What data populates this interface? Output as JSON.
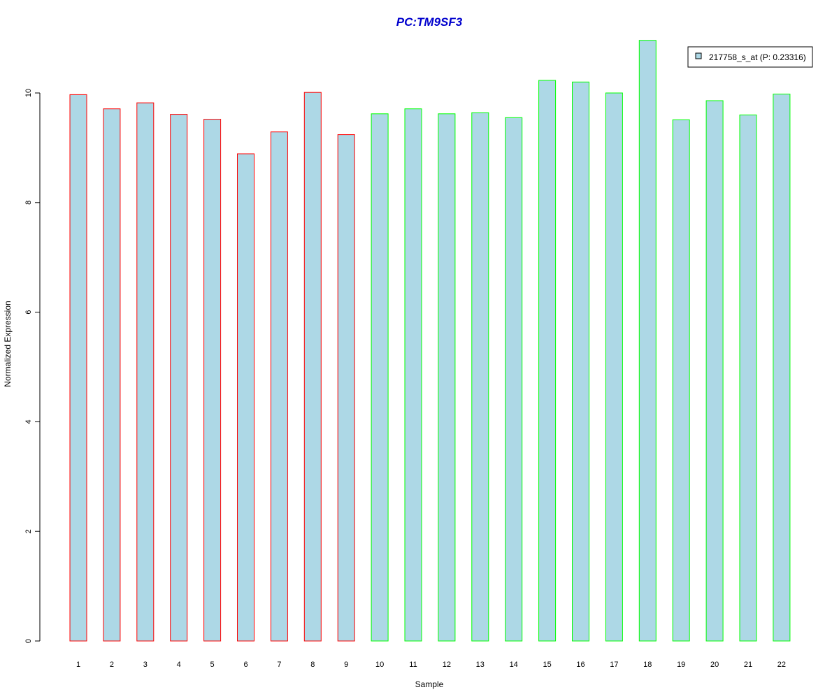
{
  "chart_data": {
    "type": "bar",
    "title": "PC:TM9SF3",
    "title_color": "#0000CD",
    "xlabel": "Sample",
    "ylabel": "Normalized Expression",
    "ylim": [
      0,
      11
    ],
    "yticks": [
      0,
      2,
      4,
      6,
      8,
      10
    ],
    "grid": false,
    "legend_position": "top-right",
    "fill_color": "#ADD8E6",
    "group_colors": {
      "group_a": "#FF0000",
      "group_b": "#00FF00"
    },
    "categories": [
      "1",
      "2",
      "3",
      "4",
      "5",
      "6",
      "7",
      "8",
      "9",
      "10",
      "11",
      "12",
      "13",
      "14",
      "15",
      "16",
      "17",
      "18",
      "19",
      "20",
      "21",
      "22"
    ],
    "series": [
      {
        "name": "217758_s_at (P: 0.23316)",
        "values": [
          9.97,
          9.71,
          9.82,
          9.61,
          9.52,
          8.89,
          9.29,
          10.01,
          9.24,
          9.62,
          9.71,
          9.62,
          9.64,
          9.55,
          10.23,
          10.2,
          10.0,
          10.96,
          9.51,
          9.86,
          9.6,
          9.98
        ],
        "border_groups": [
          "group_a",
          "group_a",
          "group_a",
          "group_a",
          "group_a",
          "group_a",
          "group_a",
          "group_a",
          "group_a",
          "group_b",
          "group_b",
          "group_b",
          "group_b",
          "group_b",
          "group_b",
          "group_b",
          "group_b",
          "group_b",
          "group_b",
          "group_b",
          "group_b",
          "group_b"
        ]
      }
    ]
  }
}
